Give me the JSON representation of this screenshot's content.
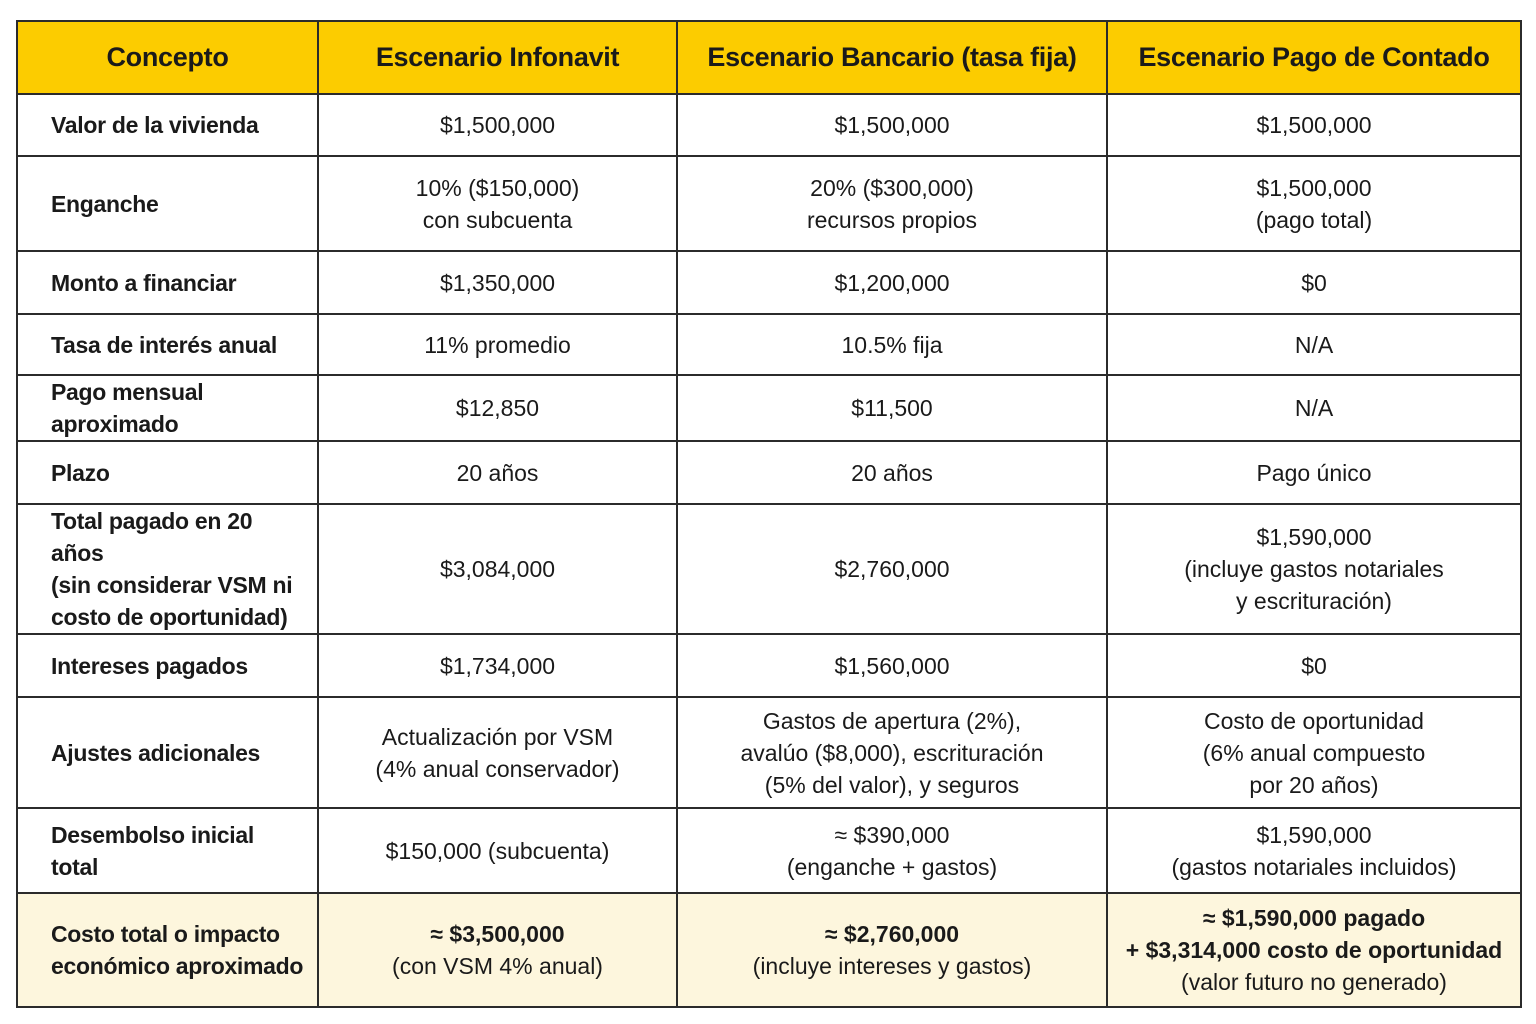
{
  "table": {
    "headers": [
      "Concepto",
      "Escenario Infonavit",
      "Escenario Bancario (tasa fija)",
      "Escenario Pago de Contado"
    ],
    "rows": [
      {
        "concept": [
          "Valor de la vivienda"
        ],
        "infonavit": [
          "$1,500,000"
        ],
        "bancario": [
          "$1,500,000"
        ],
        "contado": [
          "$1,500,000"
        ]
      },
      {
        "concept": [
          "Enganche"
        ],
        "infonavit": [
          "10% ($150,000)",
          "con subcuenta"
        ],
        "bancario": [
          "20% ($300,000)",
          "recursos propios"
        ],
        "contado": [
          "$1,500,000",
          "(pago total)"
        ]
      },
      {
        "concept": [
          "Monto a financiar"
        ],
        "infonavit": [
          "$1,350,000"
        ],
        "bancario": [
          "$1,200,000"
        ],
        "contado": [
          "$0"
        ]
      },
      {
        "concept": [
          "Tasa de interés anual"
        ],
        "infonavit": [
          "11% promedio"
        ],
        "bancario": [
          "10.5% fija"
        ],
        "contado": [
          "N/A"
        ]
      },
      {
        "concept": [
          "Pago mensual aproximado"
        ],
        "infonavit": [
          "$12,850"
        ],
        "bancario": [
          "$11,500"
        ],
        "contado": [
          "N/A"
        ]
      },
      {
        "concept": [
          "Plazo"
        ],
        "infonavit": [
          "20 años"
        ],
        "bancario": [
          "20 años"
        ],
        "contado": [
          "Pago único"
        ]
      },
      {
        "concept": [
          "Total pagado en 20 años",
          "(sin considerar VSM ni",
          "costo de oportunidad)"
        ],
        "infonavit": [
          "$3,084,000"
        ],
        "bancario": [
          "$2,760,000"
        ],
        "contado": [
          "$1,590,000",
          "(incluye gastos notariales",
          "y escrituración)"
        ]
      },
      {
        "concept": [
          "Intereses pagados"
        ],
        "infonavit": [
          "$1,734,000"
        ],
        "bancario": [
          "$1,560,000"
        ],
        "contado": [
          "$0"
        ]
      },
      {
        "concept": [
          "Ajustes adicionales"
        ],
        "infonavit": [
          "Actualización por VSM",
          "(4% anual conservador)"
        ],
        "bancario": [
          "Gastos de apertura (2%),",
          "avalúo ($8,000), escrituración",
          "(5% del valor), y seguros"
        ],
        "contado": [
          "Costo de oportunidad",
          "(6% anual compuesto",
          "por 20 años)"
        ]
      },
      {
        "concept": [
          "Desembolso inicial total"
        ],
        "infonavit": [
          "$150,000 (subcuenta)"
        ],
        "bancario": [
          "≈ $390,000",
          "(enganche + gastos)"
        ],
        "contado": [
          "$1,590,000",
          "(gastos notariales incluidos)"
        ]
      }
    ],
    "final_row": {
      "concept": [
        "Costo total o impacto",
        "económico aproximado"
      ],
      "infonavit": {
        "strong": [
          "≈ $3,500,000"
        ],
        "normal": [
          "(con VSM 4% anual)"
        ]
      },
      "bancario": {
        "strong": [
          "≈ $2,760,000"
        ],
        "normal": [
          "(incluye intereses y gastos)"
        ]
      },
      "contado": {
        "strong": [
          "≈ $1,590,000 pagado",
          "+ $3,314,000 costo de oportunidad"
        ],
        "normal": [
          "(valor futuro no generado)"
        ]
      }
    }
  },
  "colors": {
    "header_bg": "#fccc00",
    "final_row_bg": "#fdf6dd",
    "border": "#2b2b2b"
  }
}
